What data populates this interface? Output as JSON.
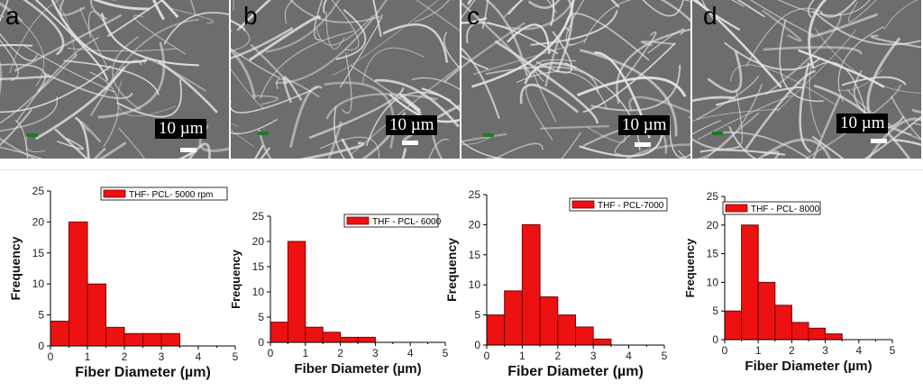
{
  "panels": [
    {
      "letter": "a",
      "scale_label": "10 µm"
    },
    {
      "letter": "b",
      "scale_label": "10 µm"
    },
    {
      "letter": "c",
      "scale_label": "10 µm"
    },
    {
      "letter": "d",
      "scale_label": "10 µm"
    }
  ],
  "colors": {
    "bar_fill": "#ee1111",
    "bar_stroke": "#7a0000",
    "sem_bg": "#6d6d6d",
    "fiber": "#e4e4e4"
  },
  "chart_data": [
    {
      "type": "bar",
      "title": "",
      "xlabel": "Fiber Diameter (µm)",
      "ylabel": "Frequency",
      "xlim": [
        0,
        5
      ],
      "ylim": [
        0,
        25
      ],
      "xticks": [
        0,
        1,
        2,
        3,
        4,
        5
      ],
      "yticks": [
        0,
        5,
        10,
        15,
        20,
        25
      ],
      "bin_width": 0.5,
      "bin_centers": [
        0.25,
        0.75,
        1.25,
        1.75,
        2.25,
        2.75,
        3.25
      ],
      "values": [
        4,
        20,
        10,
        3,
        2,
        2,
        2
      ],
      "legend": "THF- PCL- 5000 rpm",
      "legend_position": "top-right"
    },
    {
      "type": "bar",
      "title": "",
      "xlabel": "Fiber Diameter (µm)",
      "ylabel": "Frequency",
      "xlim": [
        0,
        5
      ],
      "ylim": [
        0,
        25
      ],
      "xticks": [
        0,
        1,
        2,
        3,
        4,
        5
      ],
      "yticks": [
        0,
        5,
        10,
        15,
        20,
        25
      ],
      "bin_width": 0.5,
      "bin_centers": [
        0.25,
        0.75,
        1.25,
        1.75,
        2.25,
        2.75,
        3.25
      ],
      "values": [
        4,
        20,
        3,
        2,
        1,
        1,
        0
      ],
      "legend": "THF - PCL- 6000",
      "legend_position": "top-right"
    },
    {
      "type": "bar",
      "title": "",
      "xlabel": "Fiber Diameter (µm)",
      "ylabel": "Frequency",
      "xlim": [
        0,
        5
      ],
      "ylim": [
        0,
        25
      ],
      "xticks": [
        0,
        1,
        2,
        3,
        4,
        5
      ],
      "yticks": [
        0,
        5,
        10,
        15,
        20,
        25
      ],
      "bin_width": 0.5,
      "bin_centers": [
        0.25,
        0.75,
        1.25,
        1.75,
        2.25,
        2.75,
        3.25,
        3.75
      ],
      "values": [
        5,
        9,
        20,
        8,
        5,
        3,
        1,
        0
      ],
      "legend": "THF - PCL-7000",
      "legend_position": "top-right"
    },
    {
      "type": "bar",
      "title": "",
      "xlabel": "Fiber Diameter (µm)",
      "ylabel": "Frequency",
      "xlim": [
        0,
        5
      ],
      "ylim": [
        0,
        25
      ],
      "xticks": [
        0,
        1,
        2,
        3,
        4,
        5
      ],
      "yticks": [
        0,
        5,
        10,
        15,
        20,
        25
      ],
      "bin_width": 0.5,
      "bin_centers": [
        0.25,
        0.75,
        1.25,
        1.75,
        2.25,
        2.75,
        3.25,
        3.75
      ],
      "values": [
        5,
        20,
        10,
        6,
        3,
        2,
        1,
        0
      ],
      "legend": "THF - PCL- 8000",
      "legend_position": "top-left"
    }
  ]
}
